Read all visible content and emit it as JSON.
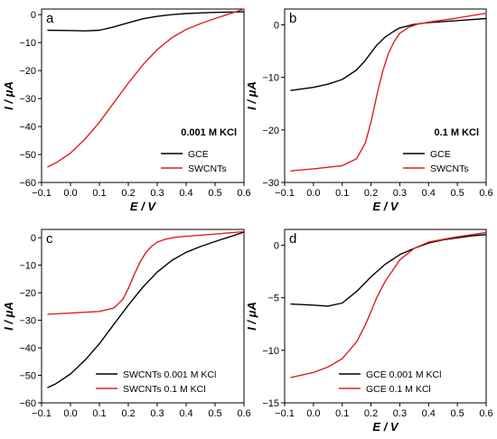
{
  "chart_data": [
    {
      "panel": "a",
      "type": "line",
      "xlabel": "E / V",
      "ylabel": "I / μA",
      "xlim": [
        -0.1,
        0.6
      ],
      "ylim": [
        -60,
        2
      ],
      "xticks": [
        -0.1,
        0.0,
        0.1,
        0.2,
        0.3,
        0.4,
        0.5,
        0.6
      ],
      "xtick_labels": [
        "−0.1",
        "0.0",
        "0.1",
        "0.2",
        "0.3",
        "0.4",
        "0.5",
        "0.6"
      ],
      "yticks": [
        0,
        -10,
        -20,
        -30,
        -40,
        -50,
        -60
      ],
      "ytick_labels": [
        "0",
        "−10",
        "−20",
        "−30",
        "−40",
        "−50",
        "−60"
      ],
      "legend_title": "0.001 M KCl",
      "legend_position": "bottom-right",
      "series": [
        {
          "name": "GCE",
          "color": "#000000",
          "x": [
            -0.08,
            0.0,
            0.05,
            0.1,
            0.15,
            0.2,
            0.25,
            0.3,
            0.35,
            0.4,
            0.45,
            0.5,
            0.55,
            0.6
          ],
          "y": [
            -5.6,
            -5.7,
            -5.8,
            -5.6,
            -4.4,
            -2.9,
            -1.5,
            -0.6,
            0.0,
            0.4,
            0.6,
            0.8,
            0.9,
            1.0
          ]
        },
        {
          "name": "SWCNTs",
          "color": "#e02020",
          "x": [
            -0.08,
            -0.05,
            0.0,
            0.05,
            0.1,
            0.15,
            0.2,
            0.25,
            0.3,
            0.35,
            0.4,
            0.45,
            0.5,
            0.55,
            0.6
          ],
          "y": [
            -54.5,
            -53.0,
            -49.5,
            -44.5,
            -38.5,
            -31.5,
            -24.5,
            -18.0,
            -12.5,
            -8.3,
            -5.3,
            -3.2,
            -1.4,
            0.3,
            2.0
          ]
        }
      ]
    },
    {
      "panel": "b",
      "type": "line",
      "xlabel": "E / V",
      "ylabel": "I / μA",
      "xlim": [
        -0.1,
        0.6
      ],
      "ylim": [
        -30,
        3
      ],
      "xticks": [
        -0.1,
        0.0,
        0.1,
        0.2,
        0.3,
        0.4,
        0.5,
        0.6
      ],
      "xtick_labels": [
        "−0.1",
        "0.0",
        "0.1",
        "0.2",
        "0.3",
        "0.4",
        "0.5",
        "0.6"
      ],
      "yticks": [
        0,
        -10,
        -20,
        -30
      ],
      "ytick_labels": [
        "0",
        "−10",
        "−20",
        "−30"
      ],
      "legend_title": "0.1 M KCl",
      "legend_position": "bottom-right",
      "series": [
        {
          "name": "GCE",
          "color": "#000000",
          "x": [
            -0.08,
            0.0,
            0.05,
            0.1,
            0.15,
            0.18,
            0.2,
            0.22,
            0.25,
            0.28,
            0.3,
            0.35,
            0.4,
            0.5,
            0.6
          ],
          "y": [
            -12.5,
            -11.9,
            -11.3,
            -10.4,
            -8.6,
            -6.8,
            -5.3,
            -3.9,
            -2.3,
            -1.2,
            -0.6,
            0.1,
            0.4,
            0.8,
            1.2
          ]
        },
        {
          "name": "SWCNTs",
          "color": "#e02020",
          "x": [
            -0.08,
            0.0,
            0.1,
            0.15,
            0.18,
            0.2,
            0.22,
            0.24,
            0.26,
            0.28,
            0.3,
            0.33,
            0.36,
            0.4,
            0.5,
            0.6
          ],
          "y": [
            -27.8,
            -27.4,
            -26.8,
            -25.5,
            -22.5,
            -18.5,
            -13.5,
            -9.0,
            -5.5,
            -3.2,
            -1.6,
            -0.5,
            0.1,
            0.5,
            1.3,
            2.2
          ]
        }
      ]
    },
    {
      "panel": "c",
      "type": "line",
      "xlabel": "",
      "ylabel": "I / μA",
      "xlim": [
        -0.1,
        0.6
      ],
      "ylim": [
        -60,
        3
      ],
      "xticks": [
        -0.1,
        0.0,
        0.1,
        0.2,
        0.3,
        0.4,
        0.5,
        0.6
      ],
      "xtick_labels": [
        "−0.1",
        "0.0",
        "0.1",
        "0.2",
        "0.3",
        "0.4",
        "0.5",
        "0.6"
      ],
      "yticks": [
        0,
        -10,
        -20,
        -30,
        -40,
        -50,
        -60
      ],
      "ytick_labels": [
        "0",
        "−10",
        "−20",
        "−30",
        "−40",
        "−50",
        "−60"
      ],
      "legend_title": "",
      "legend_position": "bottom-right",
      "series": [
        {
          "name": "SWCNTs 0.001 M KCl",
          "color": "#000000",
          "x": [
            -0.08,
            -0.05,
            0.0,
            0.05,
            0.1,
            0.15,
            0.2,
            0.25,
            0.3,
            0.35,
            0.4,
            0.45,
            0.5,
            0.55,
            0.6
          ],
          "y": [
            -54.5,
            -53.0,
            -49.5,
            -44.5,
            -38.5,
            -31.5,
            -24.5,
            -18.0,
            -12.5,
            -8.3,
            -5.3,
            -3.2,
            -1.4,
            0.3,
            2.0
          ]
        },
        {
          "name": "SWCNTs 0.1 M KCl",
          "color": "#e02020",
          "x": [
            -0.08,
            0.0,
            0.1,
            0.15,
            0.18,
            0.2,
            0.22,
            0.24,
            0.26,
            0.28,
            0.3,
            0.33,
            0.36,
            0.4,
            0.5,
            0.6
          ],
          "y": [
            -27.8,
            -27.4,
            -26.8,
            -25.5,
            -22.5,
            -18.5,
            -13.5,
            -9.0,
            -5.5,
            -3.2,
            -1.6,
            -0.5,
            0.1,
            0.5,
            1.3,
            2.2
          ]
        }
      ]
    },
    {
      "panel": "d",
      "type": "line",
      "xlabel": "E / V",
      "ylabel": "I / μA",
      "xlim": [
        -0.1,
        0.6
      ],
      "ylim": [
        -15,
        1.5
      ],
      "xticks": [
        -0.1,
        0.0,
        0.1,
        0.2,
        0.3,
        0.4,
        0.5,
        0.6
      ],
      "xtick_labels": [
        "−0.1",
        "0.0",
        "0.1",
        "0.2",
        "0.3",
        "0.4",
        "0.5",
        "0.6"
      ],
      "yticks": [
        0,
        -5,
        -10,
        -15
      ],
      "ytick_labels": [
        "0",
        "−5",
        "−10",
        "−15"
      ],
      "legend_title": "",
      "legend_position": "bottom-right",
      "series": [
        {
          "name": "GCE 0.001 M KCl",
          "color": "#000000",
          "x": [
            -0.08,
            0.0,
            0.05,
            0.1,
            0.15,
            0.2,
            0.25,
            0.3,
            0.35,
            0.4,
            0.45,
            0.5,
            0.55,
            0.6
          ],
          "y": [
            -5.6,
            -5.7,
            -5.8,
            -5.5,
            -4.4,
            -3.0,
            -1.8,
            -0.9,
            -0.3,
            0.2,
            0.5,
            0.7,
            0.9,
            1.0
          ]
        },
        {
          "name": "GCE 0.1 M KCl",
          "color": "#e02020",
          "x": [
            -0.08,
            0.0,
            0.05,
            0.1,
            0.15,
            0.18,
            0.2,
            0.22,
            0.25,
            0.28,
            0.3,
            0.35,
            0.4,
            0.5,
            0.6
          ],
          "y": [
            -12.6,
            -12.1,
            -11.6,
            -10.8,
            -9.2,
            -7.6,
            -6.3,
            -5.0,
            -3.4,
            -2.2,
            -1.4,
            -0.3,
            0.3,
            0.8,
            1.2
          ]
        }
      ]
    }
  ]
}
